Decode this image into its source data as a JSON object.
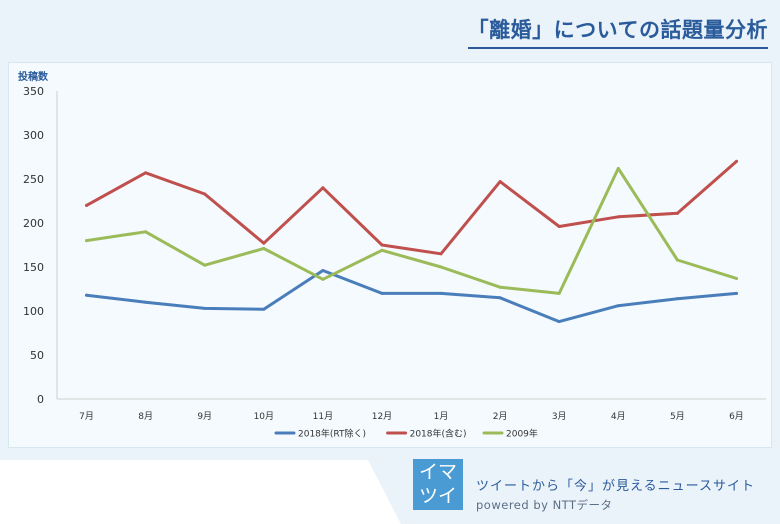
{
  "header": {
    "title": "「離婚」についての話題量分析"
  },
  "chart_data": {
    "type": "line",
    "title": "「離婚」についての話題量分析",
    "ylabel": "投稿数",
    "xlabel": "",
    "ylim": [
      0,
      350
    ],
    "yticks": [
      0,
      50,
      100,
      150,
      200,
      250,
      300,
      350
    ],
    "grid": false,
    "legend_position": "bottom",
    "categories": [
      "7月",
      "8月",
      "9月",
      "10月",
      "11月",
      "12月",
      "1月",
      "2月",
      "3月",
      "4月",
      "5月",
      "6月"
    ],
    "series": [
      {
        "name": "2018年(RT除く)",
        "color": "#4a7ebb",
        "values": [
          118,
          110,
          103,
          102,
          146,
          120,
          120,
          115,
          88,
          106,
          114,
          120
        ]
      },
      {
        "name": "2018年(含む)",
        "color": "#c0504d",
        "values": [
          220,
          257,
          233,
          177,
          240,
          175,
          165,
          247,
          196,
          207,
          211,
          270
        ]
      },
      {
        "name": "2009年",
        "color": "#9bbb59",
        "values": [
          180,
          190,
          152,
          171,
          136,
          169,
          150,
          127,
          120,
          262,
          158,
          137
        ]
      }
    ]
  },
  "footer": {
    "logo_line1": "イマ",
    "logo_line2": "ツイ",
    "tagline": "ツイートから「今」が見えるニュースサイト",
    "powered_by": "powered by  NTTデータ",
    "logo_color": "#4a9bd4"
  }
}
